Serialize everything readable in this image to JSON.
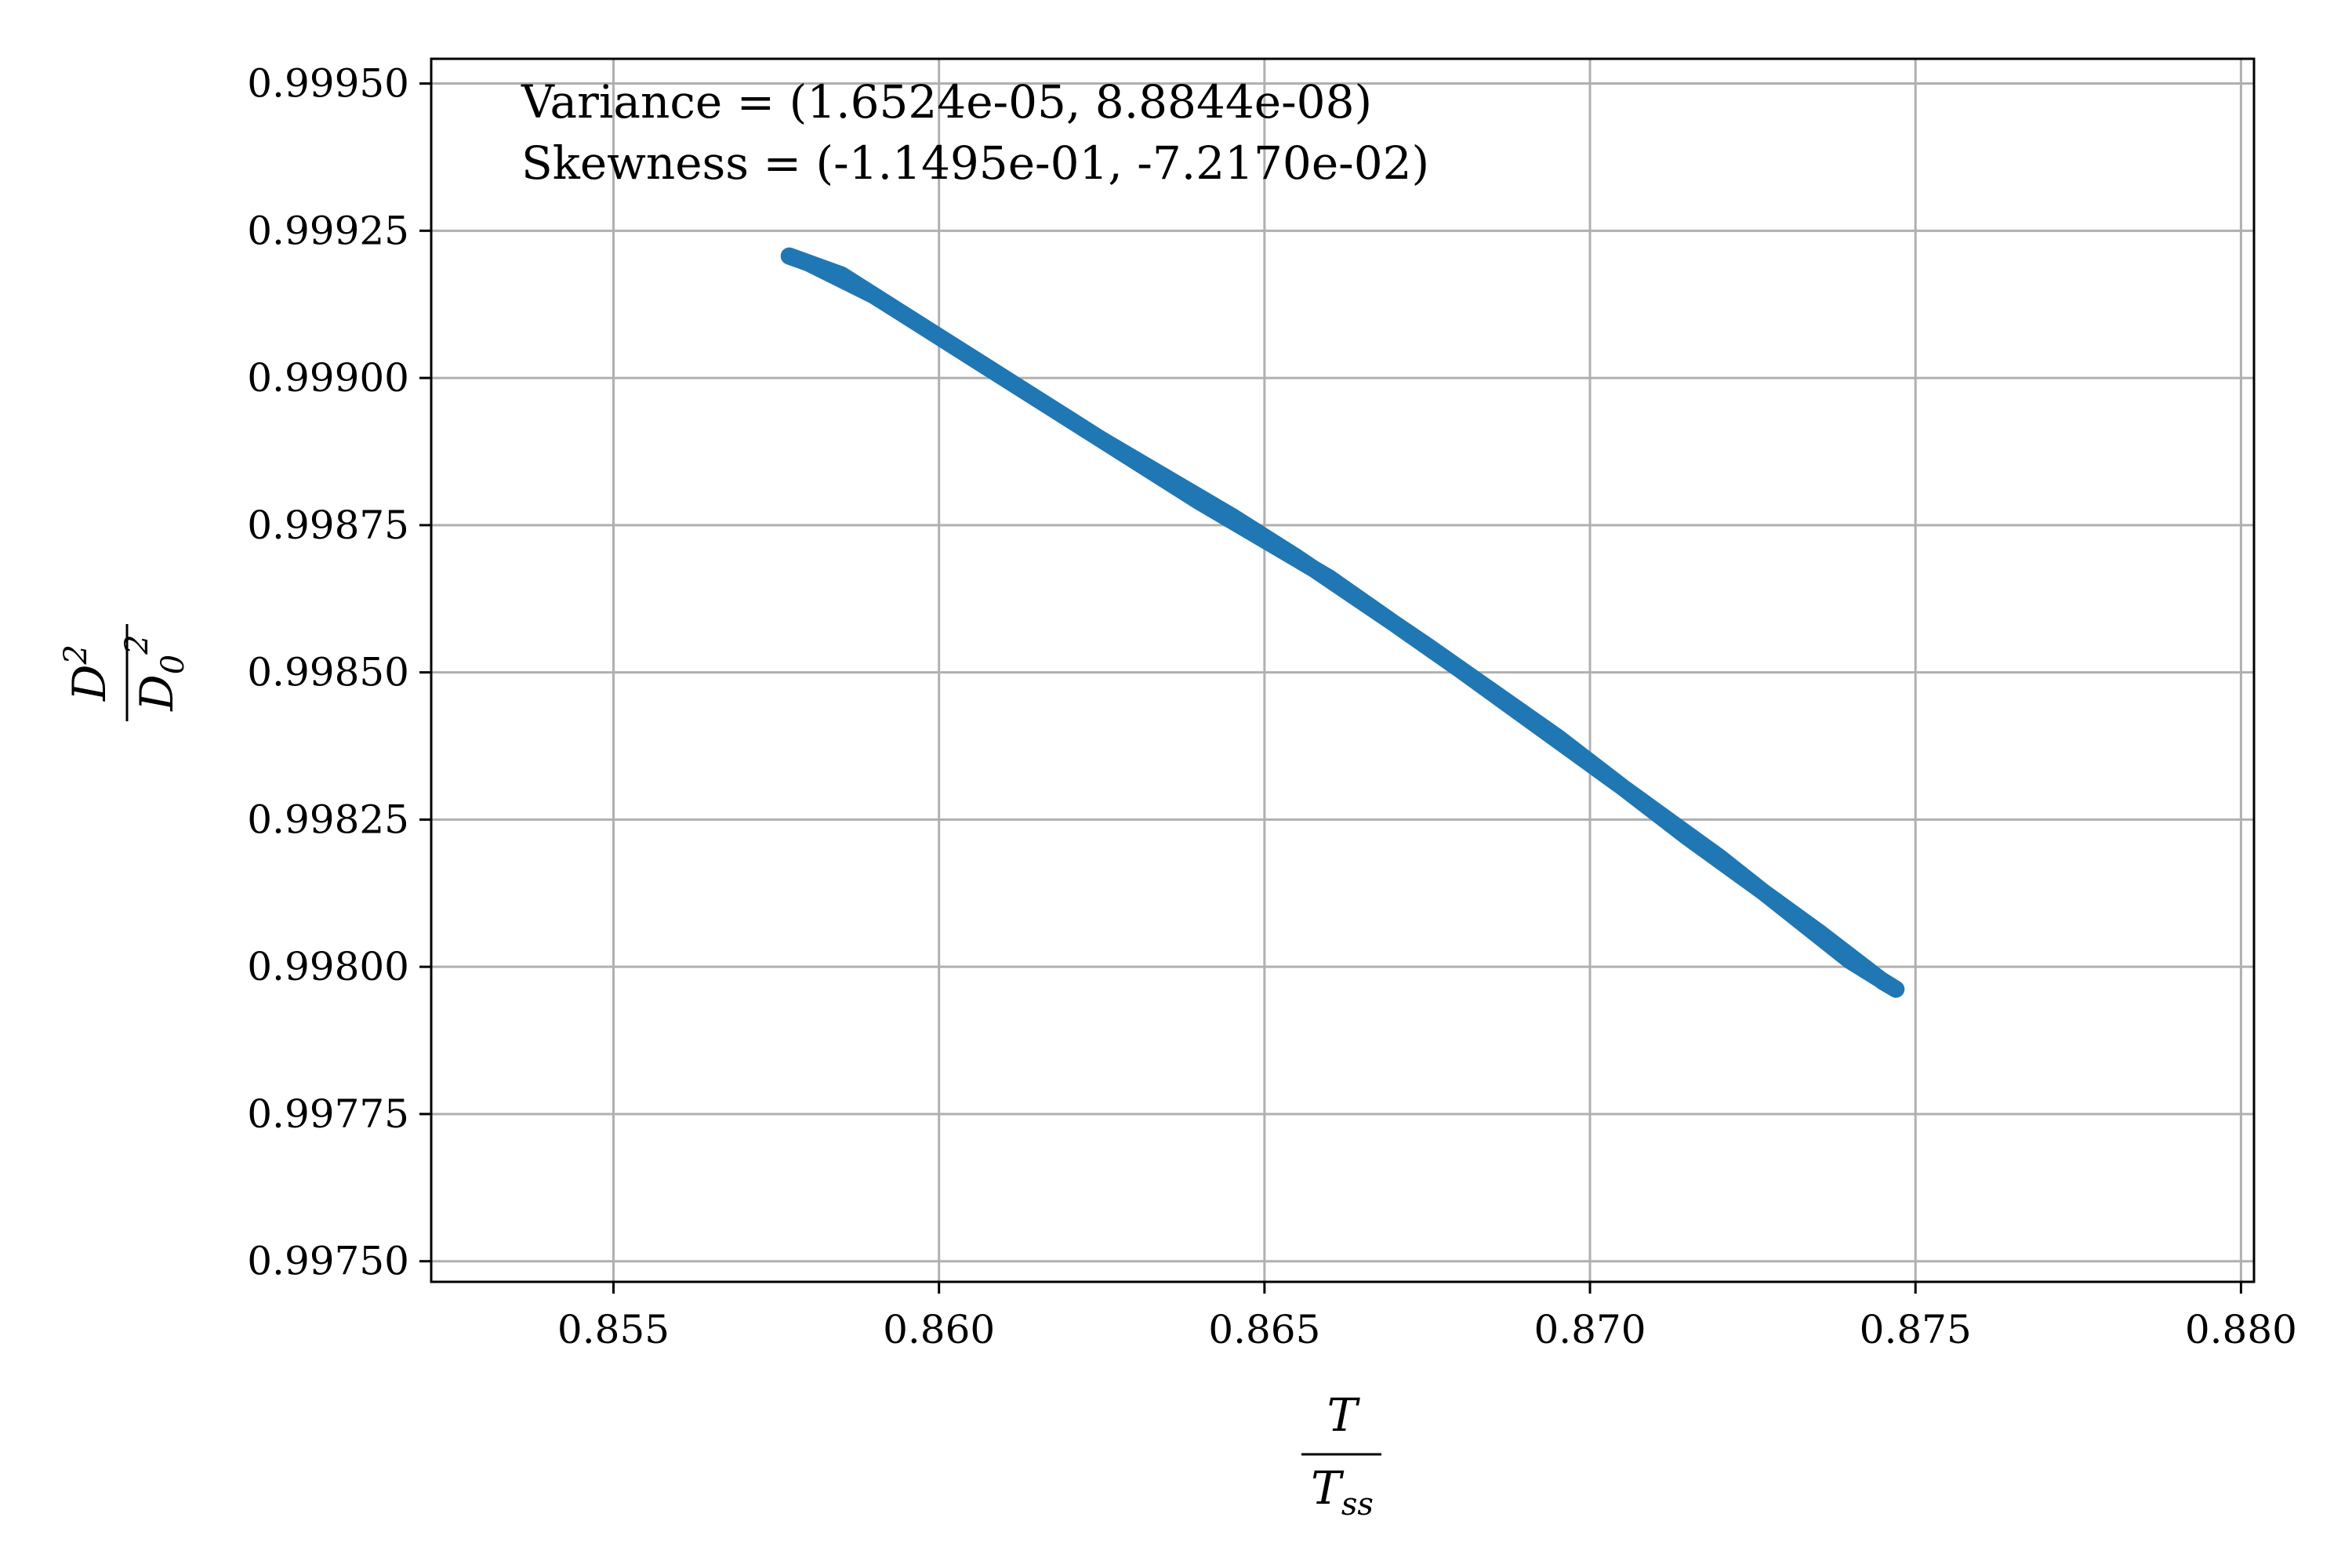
{
  "chart_data": {
    "type": "line",
    "annotations": [
      "Variance = (1.6524e-05, 8.8844e-08)",
      "Skewness = (-1.1495e-01, -7.2170e-02)"
    ],
    "xlabel": {
      "numerator": "T",
      "denominator": "T",
      "denominator_sub": "ss"
    },
    "ylabel": {
      "numerator": "D",
      "numerator_sup": "2",
      "denominator": "D",
      "denominator_sub": "0",
      "denominator_sup": "2"
    },
    "xlim": [
      0.8522,
      0.8802
    ],
    "ylim": [
      0.997465,
      0.999542
    ],
    "x_ticks": [
      0.855,
      0.86,
      0.865,
      0.87,
      0.875,
      0.88
    ],
    "x_tick_labels": [
      "0.855",
      "0.860",
      "0.865",
      "0.870",
      "0.875",
      "0.880"
    ],
    "y_ticks": [
      0.9975,
      0.99775,
      0.998,
      0.99825,
      0.9985,
      0.99875,
      0.999,
      0.99925,
      0.9995
    ],
    "y_tick_labels": [
      "0.99750",
      "0.99775",
      "0.99800",
      "0.99825",
      "0.99850",
      "0.99875",
      "0.99900",
      "0.99925",
      "0.99950"
    ],
    "grid": true,
    "line_color": "#1f77b4",
    "series": [
      {
        "x": [
          0.8577,
          0.8585,
          0.86,
          0.862,
          0.864,
          0.865,
          0.866,
          0.868,
          0.87,
          0.872,
          0.874,
          0.8747,
          0.8745,
          0.8735,
          0.8715,
          0.8695,
          0.8675,
          0.8655,
          0.8645,
          0.8625,
          0.8605,
          0.859,
          0.858,
          0.8577
        ],
        "y": [
          0.999207,
          0.999175,
          0.99907,
          0.99893,
          0.99879,
          0.998725,
          0.99866,
          0.998505,
          0.998345,
          0.998185,
          0.99801,
          0.997962,
          0.997975,
          0.99806,
          0.99822,
          0.99839,
          0.998545,
          0.998695,
          0.998765,
          0.998895,
          0.999035,
          0.99914,
          0.999195,
          0.999207
        ]
      }
    ]
  }
}
